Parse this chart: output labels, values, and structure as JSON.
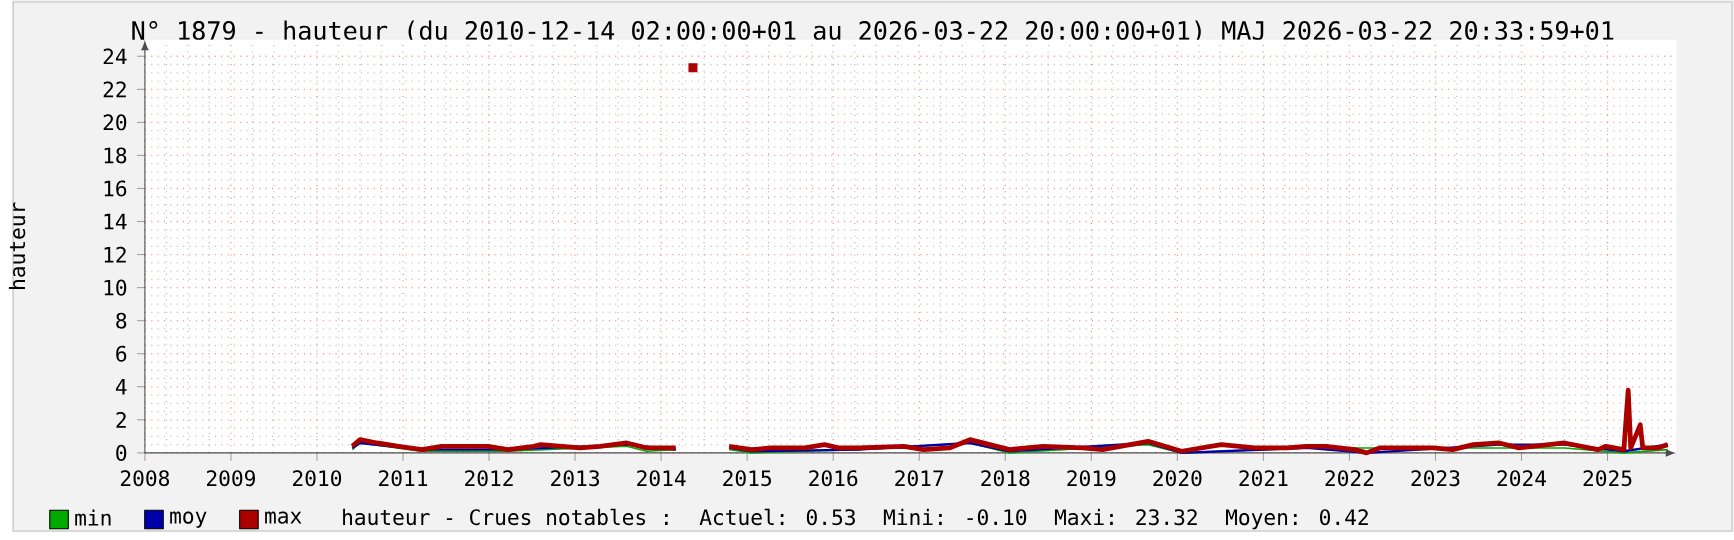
{
  "chart_data": {
    "type": "line",
    "title": "N° 1879 - hauteur (du 2010-12-14 02:00:00+01 au 2026-03-22 20:00:00+01) MAJ 2026-03-22 20:33:59+01",
    "ylabel": "hauteur",
    "xlim": [
      2008,
      2025.8
    ],
    "xticks": [
      2008,
      2009,
      2010,
      2011,
      2012,
      2013,
      2014,
      2015,
      2016,
      2017,
      2018,
      2019,
      2020,
      2021,
      2022,
      2023,
      2024,
      2025
    ],
    "ylim": [
      0,
      25
    ],
    "yticks": [
      0,
      2,
      4,
      6,
      8,
      10,
      12,
      14,
      16,
      18,
      20,
      22,
      24
    ],
    "grid": true,
    "legend": "bottom left",
    "annotations": [
      "hauteur - Crues notables :",
      "Actuel: 0.53",
      "Mini: -0.10",
      "Maxi: 23.32",
      "Moyen: 0.42"
    ],
    "series": [
      {
        "name": "min",
        "color": "#00aa00",
        "x": [
          2010.41,
          2010.5,
          2011.22,
          2012.22,
          2013.6,
          2013.83,
          2014.17,
          2014.3,
          2014.79,
          2015.05,
          2016.29,
          2017.59,
          2018.05,
          2019.66,
          2020.05,
          2021.5,
          2023.74,
          2024.5,
          2025.19,
          2025.7
        ],
        "values": [
          0.2,
          0.6,
          0.1,
          0.1,
          0.4,
          0.1,
          0.2,
          null,
          0.2,
          0.0,
          0.2,
          0.6,
          0.0,
          0.5,
          0.0,
          0.3,
          0.3,
          0.3,
          0.0,
          0.2
        ]
      },
      {
        "name": "moy",
        "color": "#0000aa",
        "x": [
          2010.41,
          2010.5,
          2011.22,
          2012.22,
          2013.6,
          2014.17,
          2014.3,
          2014.79,
          2015.05,
          2016.29,
          2017.59,
          2018.05,
          2019.66,
          2020.05,
          2021.5,
          2022.2,
          2023.74,
          2024.5,
          2025.19,
          2025.7
        ],
        "values": [
          0.3,
          0.6,
          0.2,
          0.2,
          0.5,
          0.2,
          null,
          0.3,
          0.1,
          0.2,
          0.6,
          0.1,
          0.6,
          0.0,
          0.3,
          0.0,
          0.5,
          0.5,
          0.1,
          0.5
        ]
      },
      {
        "name": "max",
        "color": "#aa0000",
        "x": [
          2010.41,
          2010.5,
          2010.7,
          2010.95,
          2011.22,
          2011.45,
          2011.99,
          2012.22,
          2012.52,
          2012.6,
          2013.06,
          2013.29,
          2013.6,
          2013.83,
          2014.17,
          2014.3,
          2014.79,
          2015.05,
          2015.28,
          2015.67,
          2015.9,
          2016.06,
          2016.29,
          2016.82,
          2017.05,
          2017.35,
          2017.59,
          2018.05,
          2018.44,
          2018.9,
          2019.13,
          2019.66,
          2020.05,
          2020.51,
          2020.9,
          2021.27,
          2021.5,
          2021.73,
          2022.06,
          2022.2,
          2022.35,
          2022.97,
          2023.2,
          2023.44,
          2023.74,
          2023.97,
          2024.5,
          2024.89,
          2024.98,
          2025.19,
          2025.24,
          2025.27,
          2025.38,
          2025.41,
          2025.58,
          2025.7
        ],
        "values": [
          0.4,
          0.8,
          0.6,
          0.4,
          0.2,
          0.4,
          0.4,
          0.2,
          0.4,
          0.5,
          0.3,
          0.4,
          0.6,
          0.3,
          0.3,
          null,
          0.4,
          0.2,
          0.3,
          0.3,
          0.5,
          0.3,
          0.3,
          0.4,
          0.2,
          0.3,
          0.8,
          0.2,
          0.4,
          0.3,
          0.2,
          0.7,
          0.1,
          0.5,
          0.3,
          0.3,
          0.4,
          0.4,
          0.2,
          0.0,
          0.3,
          0.3,
          0.2,
          0.5,
          0.6,
          0.3,
          0.6,
          0.2,
          0.4,
          0.2,
          3.8,
          0.3,
          1.7,
          0.3,
          0.3,
          0.5
        ]
      },
      {
        "type": "scatter",
        "marker": "square",
        "color": "#aa0000",
        "x": [
          2014.37
        ],
        "values": [
          23.3
        ]
      }
    ]
  }
}
